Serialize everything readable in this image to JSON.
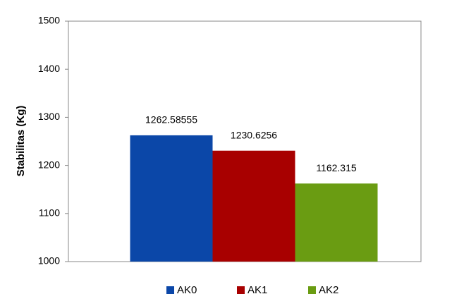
{
  "chart_data": {
    "type": "bar",
    "y_label": "Stabilitas (Kg)",
    "categories": [
      null
    ],
    "series": [
      {
        "name": "AK0",
        "color": "#0b47a8",
        "values": [
          1262.58555
        ]
      },
      {
        "name": "AK1",
        "color": "#a80000",
        "values": [
          1230.6256
        ]
      },
      {
        "name": "AK2",
        "color": "#6a9c12",
        "values": [
          1162.315
        ]
      }
    ],
    "ylim": [
      1000,
      1500
    ],
    "yticks": [
      1000,
      1100,
      1200,
      1300,
      1400,
      1500
    ],
    "grid": false,
    "legend": "bottom",
    "data_labels": true
  }
}
